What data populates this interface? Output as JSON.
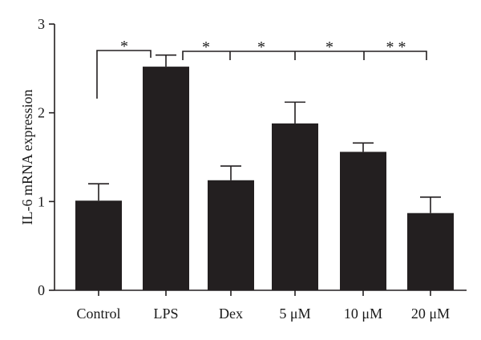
{
  "chart_data": {
    "type": "bar",
    "title": "",
    "xlabel": "",
    "ylabel": "IL-6 mRNA expression",
    "ylim": [
      0,
      3
    ],
    "yticks": [
      "0",
      "1",
      "2",
      "3"
    ],
    "categories": [
      "Control",
      "LPS",
      "Dex",
      "5 μM",
      "10 μM",
      "20 μM"
    ],
    "values": [
      1.01,
      2.52,
      1.24,
      1.88,
      1.56,
      0.87
    ],
    "errors": [
      0.19,
      0.13,
      0.16,
      0.24,
      0.1,
      0.18
    ],
    "grid": false,
    "bar_color": "#231f20",
    "significance": {
      "control_vs_lps": "*",
      "lps_vs_dex": "*",
      "lps_vs_5": "*",
      "lps_vs_10": "*",
      "lps_vs_20": "* *"
    }
  }
}
